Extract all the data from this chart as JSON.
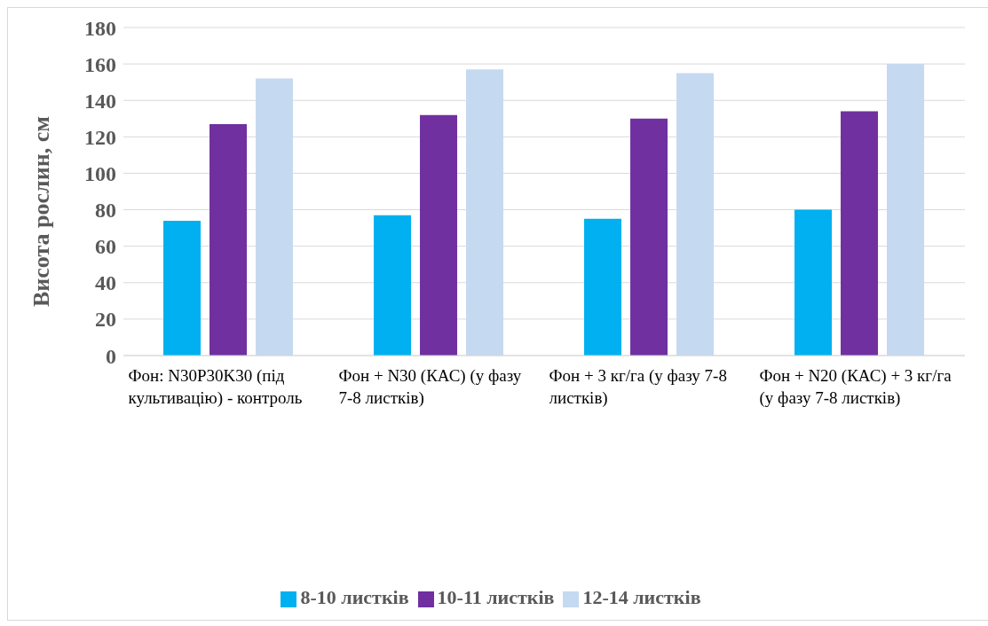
{
  "chart_data": {
    "type": "bar",
    "ylabel": "Висота рослин, см",
    "categories": [
      "Фон: N30P30K30 (під культивацію) - контроль",
      "Фон + N30 (КАС) (у фазу 7-8 листків)",
      "Фон + 3 кг/га (у фазу 7-8 листків)",
      "Фон + N20 (КАС) + 3 кг/га (у фазу 7-8 листків)"
    ],
    "series": [
      {
        "name": "8-10 листків",
        "color": "#00b0f0",
        "values": [
          74,
          77,
          75,
          80
        ]
      },
      {
        "name": "10-11 листків",
        "color": "#7030a0",
        "values": [
          127,
          132,
          130,
          134
        ]
      },
      {
        "name": "12-14 листків",
        "color": "#c5d9f1",
        "values": [
          152,
          157,
          155,
          160
        ]
      }
    ],
    "ylim": [
      0,
      180
    ],
    "yticks": [
      0,
      20,
      40,
      60,
      80,
      100,
      120,
      140,
      160,
      180
    ],
    "grid": "y",
    "legend": "bottom"
  }
}
